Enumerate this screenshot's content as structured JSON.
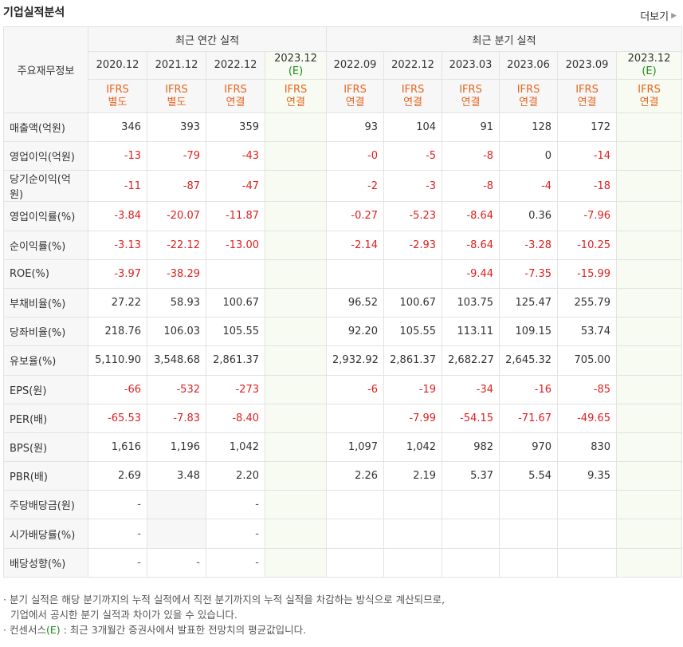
{
  "header": {
    "title": "기업실적분석",
    "more_label": "더보기"
  },
  "table": {
    "row_header_label": "주요재무정보",
    "annual_label": "최근 연간 실적",
    "quarter_label": "최근 분기 실적",
    "annual_periods": [
      {
        "period": "2020.12",
        "estimate": "",
        "ifrs": "IFRS",
        "basis": "별도"
      },
      {
        "period": "2021.12",
        "estimate": "",
        "ifrs": "IFRS",
        "basis": "별도"
      },
      {
        "period": "2022.12",
        "estimate": "",
        "ifrs": "IFRS",
        "basis": "연결"
      },
      {
        "period": "2023.12",
        "estimate": "(E)",
        "ifrs": "IFRS",
        "basis": "연결"
      }
    ],
    "quarter_periods": [
      {
        "period": "2022.09",
        "estimate": "",
        "ifrs": "IFRS",
        "basis": "연결"
      },
      {
        "period": "2022.12",
        "estimate": "",
        "ifrs": "IFRS",
        "basis": "연결"
      },
      {
        "period": "2023.03",
        "estimate": "",
        "ifrs": "IFRS",
        "basis": "연결"
      },
      {
        "period": "2023.06",
        "estimate": "",
        "ifrs": "IFRS",
        "basis": "연결"
      },
      {
        "period": "2023.09",
        "estimate": "",
        "ifrs": "IFRS",
        "basis": "연결"
      },
      {
        "period": "2023.12",
        "estimate": "(E)",
        "ifrs": "IFRS",
        "basis": "연결"
      }
    ],
    "rows": [
      {
        "label": "매출액(억원)",
        "group_start": true,
        "annual": [
          "346",
          "393",
          "359",
          ""
        ],
        "quarter": [
          "93",
          "104",
          "91",
          "128",
          "172",
          ""
        ]
      },
      {
        "label": "영업이익(억원)",
        "group_start": false,
        "annual": [
          "-13",
          "-79",
          "-43",
          ""
        ],
        "quarter": [
          "-0",
          "-5",
          "-8",
          "0",
          "-14",
          ""
        ]
      },
      {
        "label": "당기순이익(억원)",
        "group_start": false,
        "annual": [
          "-11",
          "-87",
          "-47",
          ""
        ],
        "quarter": [
          "-2",
          "-3",
          "-8",
          "-4",
          "-18",
          ""
        ]
      },
      {
        "label": "영업이익률(%)",
        "group_start": true,
        "annual": [
          "-3.84",
          "-20.07",
          "-11.87",
          ""
        ],
        "quarter": [
          "-0.27",
          "-5.23",
          "-8.64",
          "0.36",
          "-7.96",
          ""
        ]
      },
      {
        "label": "순이익률(%)",
        "group_start": false,
        "annual": [
          "-3.13",
          "-22.12",
          "-13.00",
          ""
        ],
        "quarter": [
          "-2.14",
          "-2.93",
          "-8.64",
          "-3.28",
          "-10.25",
          ""
        ]
      },
      {
        "label": "ROE(%)",
        "group_start": false,
        "annual": [
          "-3.97",
          "-38.29",
          "",
          ""
        ],
        "quarter": [
          "",
          "",
          "-9.44",
          "-7.35",
          "-15.99",
          ""
        ]
      },
      {
        "label": "부채비율(%)",
        "group_start": true,
        "annual": [
          "27.22",
          "58.93",
          "100.67",
          ""
        ],
        "quarter": [
          "96.52",
          "100.67",
          "103.75",
          "125.47",
          "255.79",
          ""
        ]
      },
      {
        "label": "당좌비율(%)",
        "group_start": false,
        "annual": [
          "218.76",
          "106.03",
          "105.55",
          ""
        ],
        "quarter": [
          "92.20",
          "105.55",
          "113.11",
          "109.15",
          "53.74",
          ""
        ]
      },
      {
        "label": "유보율(%)",
        "group_start": false,
        "annual": [
          "5,110.90",
          "3,548.68",
          "2,861.37",
          ""
        ],
        "quarter": [
          "2,932.92",
          "2,861.37",
          "2,682.27",
          "2,645.32",
          "705.00",
          ""
        ]
      },
      {
        "label": "EPS(원)",
        "group_start": true,
        "annual": [
          "-66",
          "-532",
          "-273",
          ""
        ],
        "quarter": [
          "-6",
          "-19",
          "-34",
          "-16",
          "-85",
          ""
        ]
      },
      {
        "label": "PER(배)",
        "group_start": false,
        "annual": [
          "-65.53",
          "-7.83",
          "-8.40",
          ""
        ],
        "quarter": [
          "",
          "-7.99",
          "-54.15",
          "-71.67",
          "-49.65",
          ""
        ]
      },
      {
        "label": "BPS(원)",
        "group_start": false,
        "annual": [
          "1,616",
          "1,196",
          "1,042",
          ""
        ],
        "quarter": [
          "1,097",
          "1,042",
          "982",
          "970",
          "830",
          ""
        ]
      },
      {
        "label": "PBR(배)",
        "group_start": false,
        "annual": [
          "2.69",
          "3.48",
          "2.20",
          ""
        ],
        "quarter": [
          "2.26",
          "2.19",
          "5.37",
          "5.54",
          "9.35",
          ""
        ]
      },
      {
        "label": "주당배당금(원)",
        "group_start": true,
        "annual": [
          "-",
          "",
          "-",
          ""
        ],
        "quarter": [
          "",
          "",
          "",
          "",
          "",
          ""
        ],
        "blank_annual": [
          false,
          true,
          false,
          false
        ]
      },
      {
        "label": "시가배당률(%)",
        "group_start": false,
        "annual": [
          "-",
          "",
          "-",
          ""
        ],
        "quarter": [
          "",
          "",
          "",
          "",
          "",
          ""
        ],
        "blank_annual": [
          false,
          true,
          false,
          false
        ]
      },
      {
        "label": "배당성향(%)",
        "group_start": false,
        "annual": [
          "-",
          "-",
          "-",
          ""
        ],
        "quarter": [
          "",
          "",
          "",
          "",
          "",
          ""
        ],
        "blank_annual": [
          false,
          false,
          false,
          false
        ]
      }
    ]
  },
  "notes": {
    "line1": "분기 실적은 해당 분기까지의 누적 실적에서 직전 분기까지의 누적 실적을 차감하는 방식으로 계산되므로,",
    "line2": "기업에서 공시한 분기 실적과 차이가 있을 수 있습니다.",
    "line3_pre": "컨센서스",
    "line3_e": "(E)",
    "line3_post": " : 최근 3개월간 증권사에서 발표한 전망치의 평균값입니다."
  },
  "colors": {
    "negative": "#e01f1f",
    "ifrs": "#e8641f",
    "estimate_bg": "#f7fbf1",
    "estimate_text": "#1e8a1e"
  }
}
